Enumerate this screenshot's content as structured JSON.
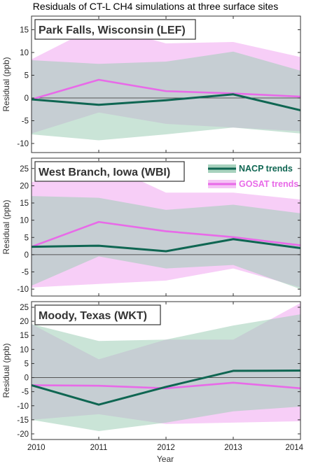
{
  "title": "Residuals of CT-L CH4 simulations at three surface sites",
  "xlabel": "Year",
  "ylabel": "Residual (ppb)",
  "legend": [
    {
      "label": "NACP trends",
      "color": "#0f6652"
    },
    {
      "label": "GOSAT trends",
      "color": "#e86ae8"
    }
  ],
  "colors": {
    "nacp_line": "#0f6652",
    "nacp_band": "#9ecdb7",
    "gosat_line": "#e86ae8",
    "gosat_band": "#f4bdf4"
  },
  "chart_data": [
    {
      "type": "line",
      "title": "Park Falls, Wisconsin (LEF)",
      "x": [
        2010,
        2011,
        2012,
        2013,
        2014
      ],
      "xlim": [
        2010,
        2014
      ],
      "ylim": [
        -12,
        18
      ],
      "yticks": [
        -10,
        -5,
        0,
        5,
        10,
        15
      ],
      "series": [
        {
          "name": "NACP trends",
          "values": [
            -0.3,
            -1.5,
            -0.5,
            0.8,
            -2.7
          ],
          "band_low": [
            -8,
            -9.3,
            -8,
            -6.5,
            -7.8
          ],
          "band_high": [
            8.3,
            7.5,
            8,
            10.2,
            6
          ]
        },
        {
          "name": "GOSAT trends",
          "values": [
            -0.3,
            4,
            1.5,
            1,
            0.3
          ],
          "band_low": [
            -7.8,
            -3.2,
            -5.7,
            -6.5,
            -7.3
          ],
          "band_high": [
            8.5,
            16,
            12,
            12.3,
            9
          ]
        }
      ]
    },
    {
      "type": "line",
      "title": "West Branch, Iowa (WBI)",
      "x": [
        2010,
        2011,
        2012,
        2013,
        2014
      ],
      "xlim": [
        2010,
        2014
      ],
      "ylim": [
        -12,
        28
      ],
      "yticks": [
        -10,
        -5,
        0,
        5,
        10,
        15,
        20,
        25
      ],
      "series": [
        {
          "name": "NACP trends",
          "values": [
            2.3,
            2.6,
            1,
            4.5,
            1.9
          ],
          "band_low": [
            -9,
            -0.5,
            -4,
            -3,
            -10
          ],
          "band_high": [
            17,
            16.5,
            13,
            14.5,
            12
          ]
        },
        {
          "name": "GOSAT trends",
          "values": [
            2.3,
            9.5,
            6.8,
            5.1,
            2.7
          ],
          "band_low": [
            -9.5,
            -8.5,
            -7.5,
            -4,
            -9.5
          ],
          "band_high": [
            21,
            27,
            18,
            18,
            16
          ]
        }
      ]
    },
    {
      "type": "line",
      "title": "Moody, Texas (WKT)",
      "x": [
        2010,
        2011,
        2012,
        2013,
        2014
      ],
      "xlim": [
        2010,
        2014
      ],
      "ylim": [
        -22,
        27
      ],
      "yticks": [
        -20,
        -15,
        -10,
        -5,
        0,
        5,
        10,
        15,
        20,
        25
      ],
      "series": [
        {
          "name": "NACP trends",
          "values": [
            -2.7,
            -9.6,
            -3.3,
            2.4,
            2.5
          ],
          "band_low": [
            -15,
            -19,
            -16,
            -12,
            -10.3
          ],
          "band_high": [
            19,
            13,
            13.5,
            18.5,
            22.5
          ]
        },
        {
          "name": "GOSAT trends",
          "values": [
            -2.7,
            -2.9,
            -3.8,
            -1.8,
            -3.8
          ],
          "band_low": [
            -15,
            -13,
            -16.5,
            -16,
            -15.5
          ],
          "band_high": [
            19,
            6.5,
            13.5,
            13.5,
            26.5
          ]
        }
      ]
    }
  ]
}
